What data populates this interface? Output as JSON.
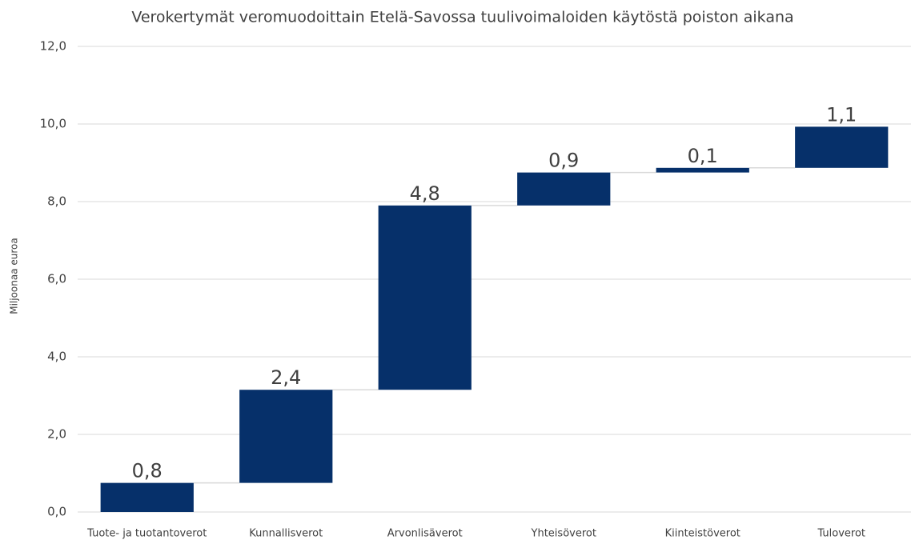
{
  "chart_data": {
    "type": "waterfall",
    "title": "Verokertymät veromuodoittain Etelä-Savossa tuulivoimaloiden käytöstä poiston aikana",
    "y_axis_label": "Miljoonaa euroa",
    "categories": [
      "Tuote- ja tuotantoverot",
      "Kunnallisverot",
      "Arvonlisäverot",
      "Yhteisöverot",
      "Kiinteistöverot",
      "Tuloverot"
    ],
    "values": [
      0.75,
      2.4,
      4.75,
      0.85,
      0.12,
      1.06
    ],
    "value_labels": [
      "0,8",
      "2,4",
      "4,8",
      "0,9",
      "0,1",
      "1,1"
    ],
    "color": "#06306a",
    "ylim": [
      0,
      12
    ],
    "yticks": [
      {
        "value": 0,
        "label": "0,0"
      },
      {
        "value": 2,
        "label": "2,0"
      },
      {
        "value": 4,
        "label": "4,0"
      },
      {
        "value": 6,
        "label": "6,0"
      },
      {
        "value": 8,
        "label": "8,0"
      },
      {
        "value": 10,
        "label": "10,0"
      },
      {
        "value": 12,
        "label": "12,0"
      }
    ],
    "grid": true
  }
}
